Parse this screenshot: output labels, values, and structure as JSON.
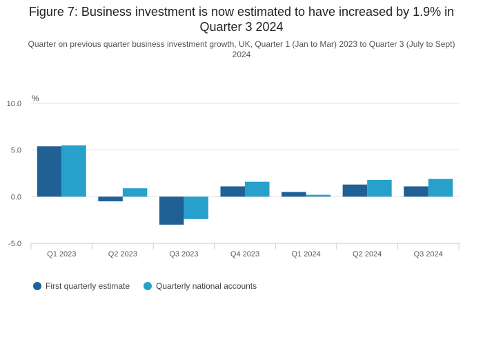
{
  "chart_data": {
    "type": "bar",
    "title": "Figure 7: Business investment is now estimated to have increased by 1.9% in Quarter 3 2024",
    "subtitle": "Quarter on previous quarter business investment growth, UK, Quarter 1 (Jan to Mar) 2023 to Quarter 3 (July to Sept) 2024",
    "ylabel": "%",
    "xlabel": "",
    "ylim": [
      -5.0,
      10.0
    ],
    "yticks": [
      "10.0",
      "5.0",
      "0.0",
      "-5.0"
    ],
    "categories": [
      "Q1 2023",
      "Q2 2023",
      "Q3 2023",
      "Q4 2023",
      "Q1 2024",
      "Q2 2024",
      "Q3 2024"
    ],
    "series": [
      {
        "name": "First quarterly estimate",
        "color": "#206095",
        "values": [
          5.4,
          -0.5,
          -3.0,
          1.1,
          0.5,
          1.3,
          1.1
        ]
      },
      {
        "name": "Quarterly national accounts",
        "color": "#27a0cc",
        "values": [
          5.5,
          0.9,
          -2.4,
          1.6,
          0.2,
          1.8,
          1.9
        ]
      }
    ],
    "grid": true,
    "legend_position": "bottom-left"
  }
}
